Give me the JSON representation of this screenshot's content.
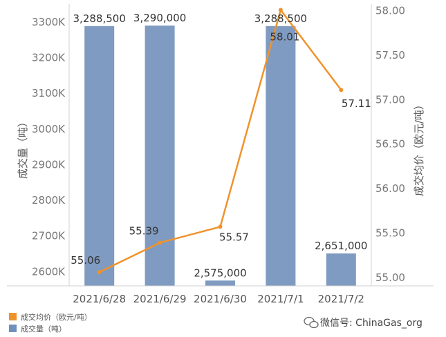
{
  "chart_data": {
    "type": "bar",
    "categories": [
      "2021/6/28",
      "2021/6/29",
      "2021/6/30",
      "2021/7/1",
      "2021/7/2"
    ],
    "series": [
      {
        "name": "成交量（吨）",
        "type": "bar",
        "axis": "left",
        "values": [
          3288500,
          3290000,
          2575000,
          3288500,
          2651000
        ],
        "value_labels": [
          "3,288,500",
          "3,290,000",
          "2,575,000",
          "3,288,500",
          "2,651,000"
        ],
        "color": "#7f9bc1"
      },
      {
        "name": "成交均价（欧元/吨）",
        "type": "line",
        "axis": "right",
        "values": [
          55.06,
          55.39,
          55.57,
          58.01,
          57.11
        ],
        "value_labels": [
          "55.06",
          "55.39",
          "55.57",
          "58.01",
          "57.11"
        ],
        "color": "#f0922b"
      }
    ],
    "ylabel": "成交量（吨）",
    "ylabel_right": "成交均价（欧元/吨）",
    "ylim": [
      2560000,
      3350000
    ],
    "yticks": [
      2600000,
      2700000,
      2800000,
      2900000,
      3000000,
      3100000,
      3200000,
      3300000
    ],
    "ytick_labels": [
      "2600K",
      "2700K",
      "2800K",
      "2900K",
      "3000K",
      "3100K",
      "3200K",
      "3300K"
    ],
    "ylim_right": [
      54.905,
      58.075
    ],
    "yticks_right": [
      55.0,
      55.5,
      56.0,
      56.5,
      57.0,
      57.5,
      58.0
    ],
    "ytick_labels_right": [
      "55.00",
      "55.50",
      "56.00",
      "56.50",
      "57.00",
      "57.50",
      "58.00"
    ],
    "legend_position": "bottom-left",
    "grid": false
  },
  "legend": {
    "items": [
      {
        "label": "成交均价（欧元/吨）",
        "color": "#f0922b"
      },
      {
        "label": "成交量（吨）",
        "color": "#6f8fbd"
      }
    ]
  },
  "watermark": {
    "text": "微信号: ChinaGas_org"
  }
}
